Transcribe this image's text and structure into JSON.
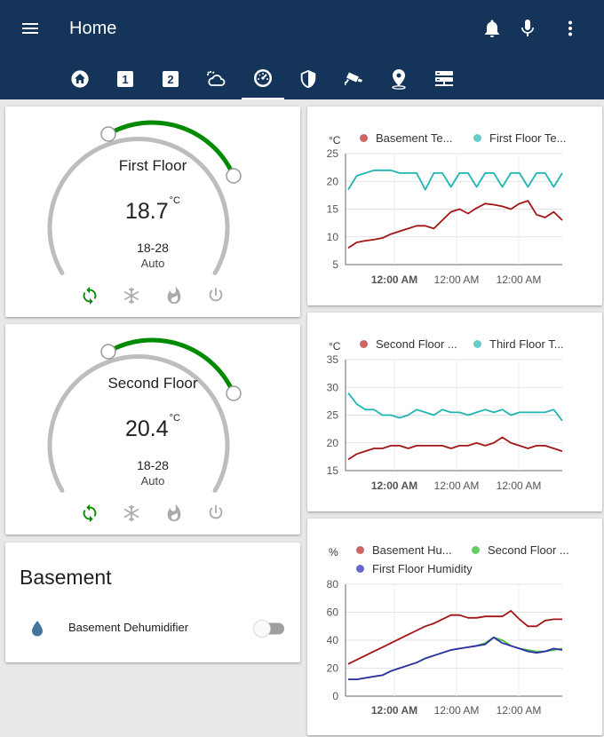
{
  "app": {
    "title": "Home",
    "tabs": [
      "home-icon",
      "floor-one-icon",
      "floor-two-icon",
      "weather-icon",
      "gauge-icon",
      "shield-icon",
      "cctv-icon",
      "map-marker-icon",
      "server-icon"
    ],
    "active_tab": 4
  },
  "thermostats": [
    {
      "name": "First Floor",
      "temperature": "18.7",
      "unit": "°C",
      "range": "18-28",
      "mode": "Auto",
      "mode_icons": [
        "auto-mode-icon",
        "cool-mode-icon",
        "heat-mode-icon",
        "power-off-icon"
      ],
      "active_mode": "auto"
    },
    {
      "name": "Second Floor",
      "temperature": "20.4",
      "unit": "°C",
      "range": "18-28",
      "mode": "Auto",
      "mode_icons": [
        "auto-mode-icon",
        "cool-mode-icon",
        "heat-mode-icon",
        "power-off-icon"
      ],
      "active_mode": "auto"
    }
  ],
  "basement": {
    "title": "Basement",
    "entity_label": "Basement Dehumidifier",
    "icon": "water-drop-icon",
    "toggle_on": false
  },
  "colors": {
    "header": "#143559",
    "accent_green": "#008a00",
    "series_red": "#a31515",
    "series_teal": "#1fb5b2",
    "series_green": "#44c044",
    "series_blue": "#2e2ea8",
    "dot_red": "#cc6666",
    "dot_teal": "#66cccc",
    "dot_green": "#66cc66",
    "dot_blue": "#6666cc"
  },
  "chart_data": [
    {
      "type": "line",
      "unit_label": "°C",
      "yticks": [
        5,
        10,
        15,
        20,
        25
      ],
      "ylim": [
        5,
        25
      ],
      "xticks": [
        "12:00 AM",
        "12:00 AM",
        "12:00 AM"
      ],
      "grid": true,
      "legend_position": "top",
      "series": [
        {
          "name": "Basement Te...",
          "color": "#a31515",
          "dot": "#cc6666",
          "values": [
            8,
            9,
            9.3,
            9.5,
            9.8,
            10.5,
            11,
            11.5,
            12,
            12,
            11.5,
            13,
            14.5,
            15,
            14.2,
            15.2,
            16,
            15.8,
            15.5,
            15,
            16,
            16.5,
            14,
            13.5,
            14.5,
            13
          ]
        },
        {
          "name": "First Floor Te...",
          "color": "#1fb5b2",
          "dot": "#66cccc",
          "values": [
            18.5,
            21,
            21.5,
            22,
            22,
            22,
            21.5,
            21.5,
            21.5,
            18.5,
            21.5,
            21.5,
            19,
            21.5,
            21.5,
            19,
            21.5,
            21.5,
            19,
            21.5,
            21.5,
            19,
            21.5,
            21.5,
            19,
            21.5
          ]
        }
      ]
    },
    {
      "type": "line",
      "unit_label": "°C",
      "yticks": [
        15,
        20,
        25,
        30,
        35
      ],
      "ylim": [
        15,
        35
      ],
      "xticks": [
        "12:00 AM",
        "12:00 AM",
        "12:00 AM"
      ],
      "grid": true,
      "legend_position": "top",
      "series": [
        {
          "name": "Second Floor ...",
          "color": "#a31515",
          "dot": "#cc6666",
          "values": [
            17,
            18,
            18.5,
            19,
            19,
            19.5,
            19.5,
            19,
            19.5,
            19.5,
            19.5,
            19.5,
            19,
            19.5,
            19.5,
            20,
            19.5,
            20,
            21,
            20,
            19.5,
            19,
            19.5,
            19.5,
            19,
            18.5
          ]
        },
        {
          "name": "Third Floor T...",
          "color": "#1fb5b2",
          "dot": "#66cccc",
          "values": [
            29,
            27,
            26,
            26,
            25,
            25,
            24.5,
            25,
            26,
            25.5,
            25,
            26,
            25.5,
            25.5,
            25,
            25.5,
            26,
            25.5,
            26,
            25,
            25.5,
            25.5,
            25.5,
            25.5,
            26,
            24
          ]
        }
      ]
    },
    {
      "type": "line",
      "unit_label": "%",
      "yticks": [
        0,
        20,
        40,
        60,
        80
      ],
      "ylim": [
        0,
        80
      ],
      "xticks": [
        "12:00 AM",
        "12:00 AM",
        "12:00 AM"
      ],
      "grid": true,
      "legend_position": "top",
      "series": [
        {
          "name": "Basement Hu...",
          "color": "#a31515",
          "dot": "#cc6666",
          "values": [
            23,
            26,
            29,
            32,
            35,
            38,
            41,
            44,
            47,
            50,
            52,
            55,
            58,
            58,
            56,
            56,
            57,
            57,
            57,
            61,
            55,
            50,
            50,
            54,
            55,
            55
          ]
        },
        {
          "name": "Second Floor ...",
          "color": "#44c044",
          "dot": "#66cc66",
          "values": [
            12,
            12,
            13,
            14,
            15,
            18,
            20,
            22,
            24,
            27,
            29,
            31,
            33,
            34,
            35,
            36,
            38,
            42,
            40,
            36,
            34,
            33,
            32,
            32,
            33,
            34
          ]
        },
        {
          "name": "First Floor Humidity",
          "color": "#2e2ea8",
          "dot": "#6666cc",
          "values": [
            12,
            12,
            13,
            14,
            15,
            18,
            20,
            22,
            24,
            27,
            29,
            31,
            33,
            34,
            35,
            36,
            37,
            42,
            38,
            36,
            34,
            32,
            31,
            32,
            34,
            33
          ]
        }
      ]
    }
  ]
}
